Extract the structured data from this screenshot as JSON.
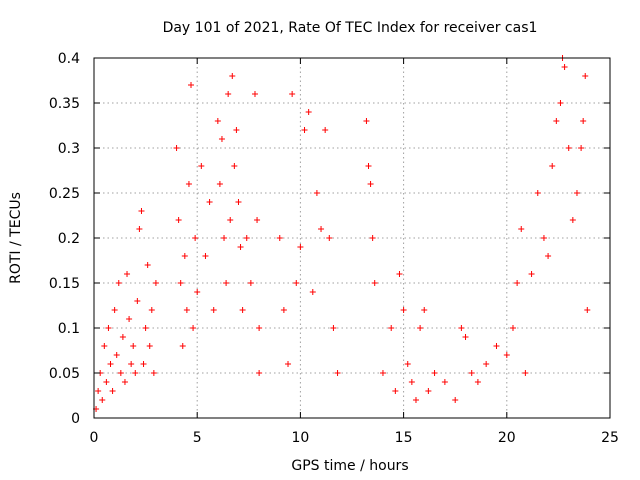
{
  "chart_data": {
    "type": "scatter",
    "title": "Day 101 of 2021, Rate Of TEC Index for receiver cas1",
    "xlabel": "GPS time / hours",
    "ylabel": "ROTI / TECUs",
    "xlim": [
      0,
      25
    ],
    "ylim": [
      0,
      0.4
    ],
    "xticks": [
      0,
      5,
      10,
      15,
      20,
      25
    ],
    "yticks": [
      0,
      0.05,
      0.1,
      0.15,
      0.2,
      0.25,
      0.3,
      0.35,
      0.4
    ],
    "xtick_labels": [
      "0",
      "5",
      "10",
      "15",
      "20",
      "25"
    ],
    "ytick_labels": [
      "0",
      "0.05",
      "0.1",
      "0.15",
      "0.2",
      "0.25",
      "0.3",
      "0.35",
      "0.4"
    ],
    "grid": true,
    "marker": "+",
    "color": "#ff0000",
    "series": [
      {
        "name": "ROTI",
        "points": [
          [
            0.1,
            0.01
          ],
          [
            0.2,
            0.03
          ],
          [
            0.3,
            0.05
          ],
          [
            0.4,
            0.02
          ],
          [
            0.5,
            0.08
          ],
          [
            0.6,
            0.04
          ],
          [
            0.7,
            0.1
          ],
          [
            0.8,
            0.06
          ],
          [
            0.9,
            0.03
          ],
          [
            1.0,
            0.12
          ],
          [
            1.1,
            0.07
          ],
          [
            1.2,
            0.15
          ],
          [
            1.3,
            0.05
          ],
          [
            1.4,
            0.09
          ],
          [
            1.5,
            0.04
          ],
          [
            1.6,
            0.16
          ],
          [
            1.7,
            0.11
          ],
          [
            1.8,
            0.06
          ],
          [
            1.9,
            0.08
          ],
          [
            2.0,
            0.05
          ],
          [
            2.1,
            0.13
          ],
          [
            2.2,
            0.21
          ],
          [
            2.3,
            0.23
          ],
          [
            2.4,
            0.06
          ],
          [
            2.5,
            0.1
          ],
          [
            2.6,
            0.17
          ],
          [
            2.7,
            0.08
          ],
          [
            2.8,
            0.12
          ],
          [
            2.9,
            0.05
          ],
          [
            3.0,
            0.15
          ],
          [
            4.0,
            0.3
          ],
          [
            4.1,
            0.22
          ],
          [
            4.2,
            0.15
          ],
          [
            4.3,
            0.08
          ],
          [
            4.4,
            0.18
          ],
          [
            4.5,
            0.12
          ],
          [
            4.6,
            0.26
          ],
          [
            4.7,
            0.37
          ],
          [
            4.8,
            0.1
          ],
          [
            4.9,
            0.2
          ],
          [
            5.0,
            0.14
          ],
          [
            5.2,
            0.28
          ],
          [
            5.4,
            0.18
          ],
          [
            5.6,
            0.24
          ],
          [
            5.8,
            0.12
          ],
          [
            6.0,
            0.33
          ],
          [
            6.1,
            0.26
          ],
          [
            6.2,
            0.31
          ],
          [
            6.3,
            0.2
          ],
          [
            6.4,
            0.15
          ],
          [
            6.5,
            0.36
          ],
          [
            6.6,
            0.22
          ],
          [
            6.7,
            0.38
          ],
          [
            6.8,
            0.28
          ],
          [
            6.9,
            0.32
          ],
          [
            7.0,
            0.24
          ],
          [
            7.1,
            0.19
          ],
          [
            7.2,
            0.12
          ],
          [
            7.4,
            0.2
          ],
          [
            7.6,
            0.15
          ],
          [
            7.8,
            0.36
          ],
          [
            7.9,
            0.22
          ],
          [
            8.0,
            0.1
          ],
          [
            8.0,
            0.05
          ],
          [
            9.0,
            0.2
          ],
          [
            9.2,
            0.12
          ],
          [
            9.4,
            0.06
          ],
          [
            9.6,
            0.36
          ],
          [
            9.8,
            0.15
          ],
          [
            10.0,
            0.19
          ],
          [
            10.2,
            0.32
          ],
          [
            10.4,
            0.34
          ],
          [
            10.6,
            0.14
          ],
          [
            10.8,
            0.25
          ],
          [
            11.0,
            0.21
          ],
          [
            11.2,
            0.32
          ],
          [
            11.4,
            0.2
          ],
          [
            11.6,
            0.1
          ],
          [
            11.8,
            0.05
          ],
          [
            13.2,
            0.33
          ],
          [
            13.3,
            0.28
          ],
          [
            13.4,
            0.26
          ],
          [
            13.5,
            0.2
          ],
          [
            13.6,
            0.15
          ],
          [
            14.0,
            0.05
          ],
          [
            14.4,
            0.1
          ],
          [
            14.6,
            0.03
          ],
          [
            14.8,
            0.16
          ],
          [
            15.0,
            0.12
          ],
          [
            15.2,
            0.06
          ],
          [
            15.4,
            0.04
          ],
          [
            15.6,
            0.02
          ],
          [
            15.8,
            0.1
          ],
          [
            16.0,
            0.12
          ],
          [
            16.2,
            0.03
          ],
          [
            16.5,
            0.05
          ],
          [
            17.0,
            0.04
          ],
          [
            17.5,
            0.02
          ],
          [
            17.8,
            0.1
          ],
          [
            18.0,
            0.09
          ],
          [
            18.3,
            0.05
          ],
          [
            18.6,
            0.04
          ],
          [
            19.0,
            0.06
          ],
          [
            19.5,
            0.08
          ],
          [
            20.0,
            0.07
          ],
          [
            20.3,
            0.1
          ],
          [
            20.5,
            0.15
          ],
          [
            20.7,
            0.21
          ],
          [
            20.9,
            0.05
          ],
          [
            21.2,
            0.16
          ],
          [
            21.5,
            0.25
          ],
          [
            21.8,
            0.2
          ],
          [
            22.0,
            0.18
          ],
          [
            22.2,
            0.28
          ],
          [
            22.4,
            0.33
          ],
          [
            22.6,
            0.35
          ],
          [
            22.7,
            0.4
          ],
          [
            22.8,
            0.39
          ],
          [
            23.0,
            0.3
          ],
          [
            23.2,
            0.22
          ],
          [
            23.4,
            0.25
          ],
          [
            23.6,
            0.3
          ],
          [
            23.7,
            0.33
          ],
          [
            23.8,
            0.38
          ],
          [
            23.9,
            0.12
          ]
        ]
      }
    ]
  }
}
